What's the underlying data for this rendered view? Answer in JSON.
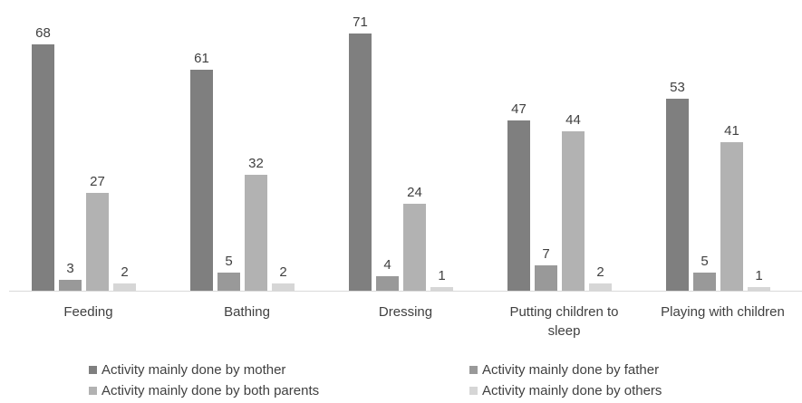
{
  "chart_data": {
    "type": "bar",
    "categories": [
      "Feeding",
      "Bathing",
      "Dressing",
      "Putting children to sleep",
      "Playing with children"
    ],
    "category_lines": [
      [
        "Feeding"
      ],
      [
        "Bathing"
      ],
      [
        "Dressing"
      ],
      [
        "Putting children to",
        "sleep"
      ],
      [
        "Playing with children"
      ]
    ],
    "series": [
      {
        "name": "Activity mainly done by mother",
        "color": "#7f7f7f",
        "values": [
          68,
          61,
          71,
          47,
          53
        ]
      },
      {
        "name": "Activity mainly done by father",
        "color": "#999999",
        "values": [
          3,
          5,
          4,
          7,
          5
        ]
      },
      {
        "name": "Activity mainly done by both parents",
        "color": "#b2b2b2",
        "values": [
          27,
          32,
          24,
          44,
          41
        ]
      },
      {
        "name": "Activity mainly done by others",
        "color": "#d6d6d6",
        "values": [
          2,
          2,
          1,
          2,
          1
        ]
      }
    ],
    "ylim": [
      0,
      75
    ],
    "data_labels": true,
    "grid": false,
    "legend_position": "bottom"
  }
}
